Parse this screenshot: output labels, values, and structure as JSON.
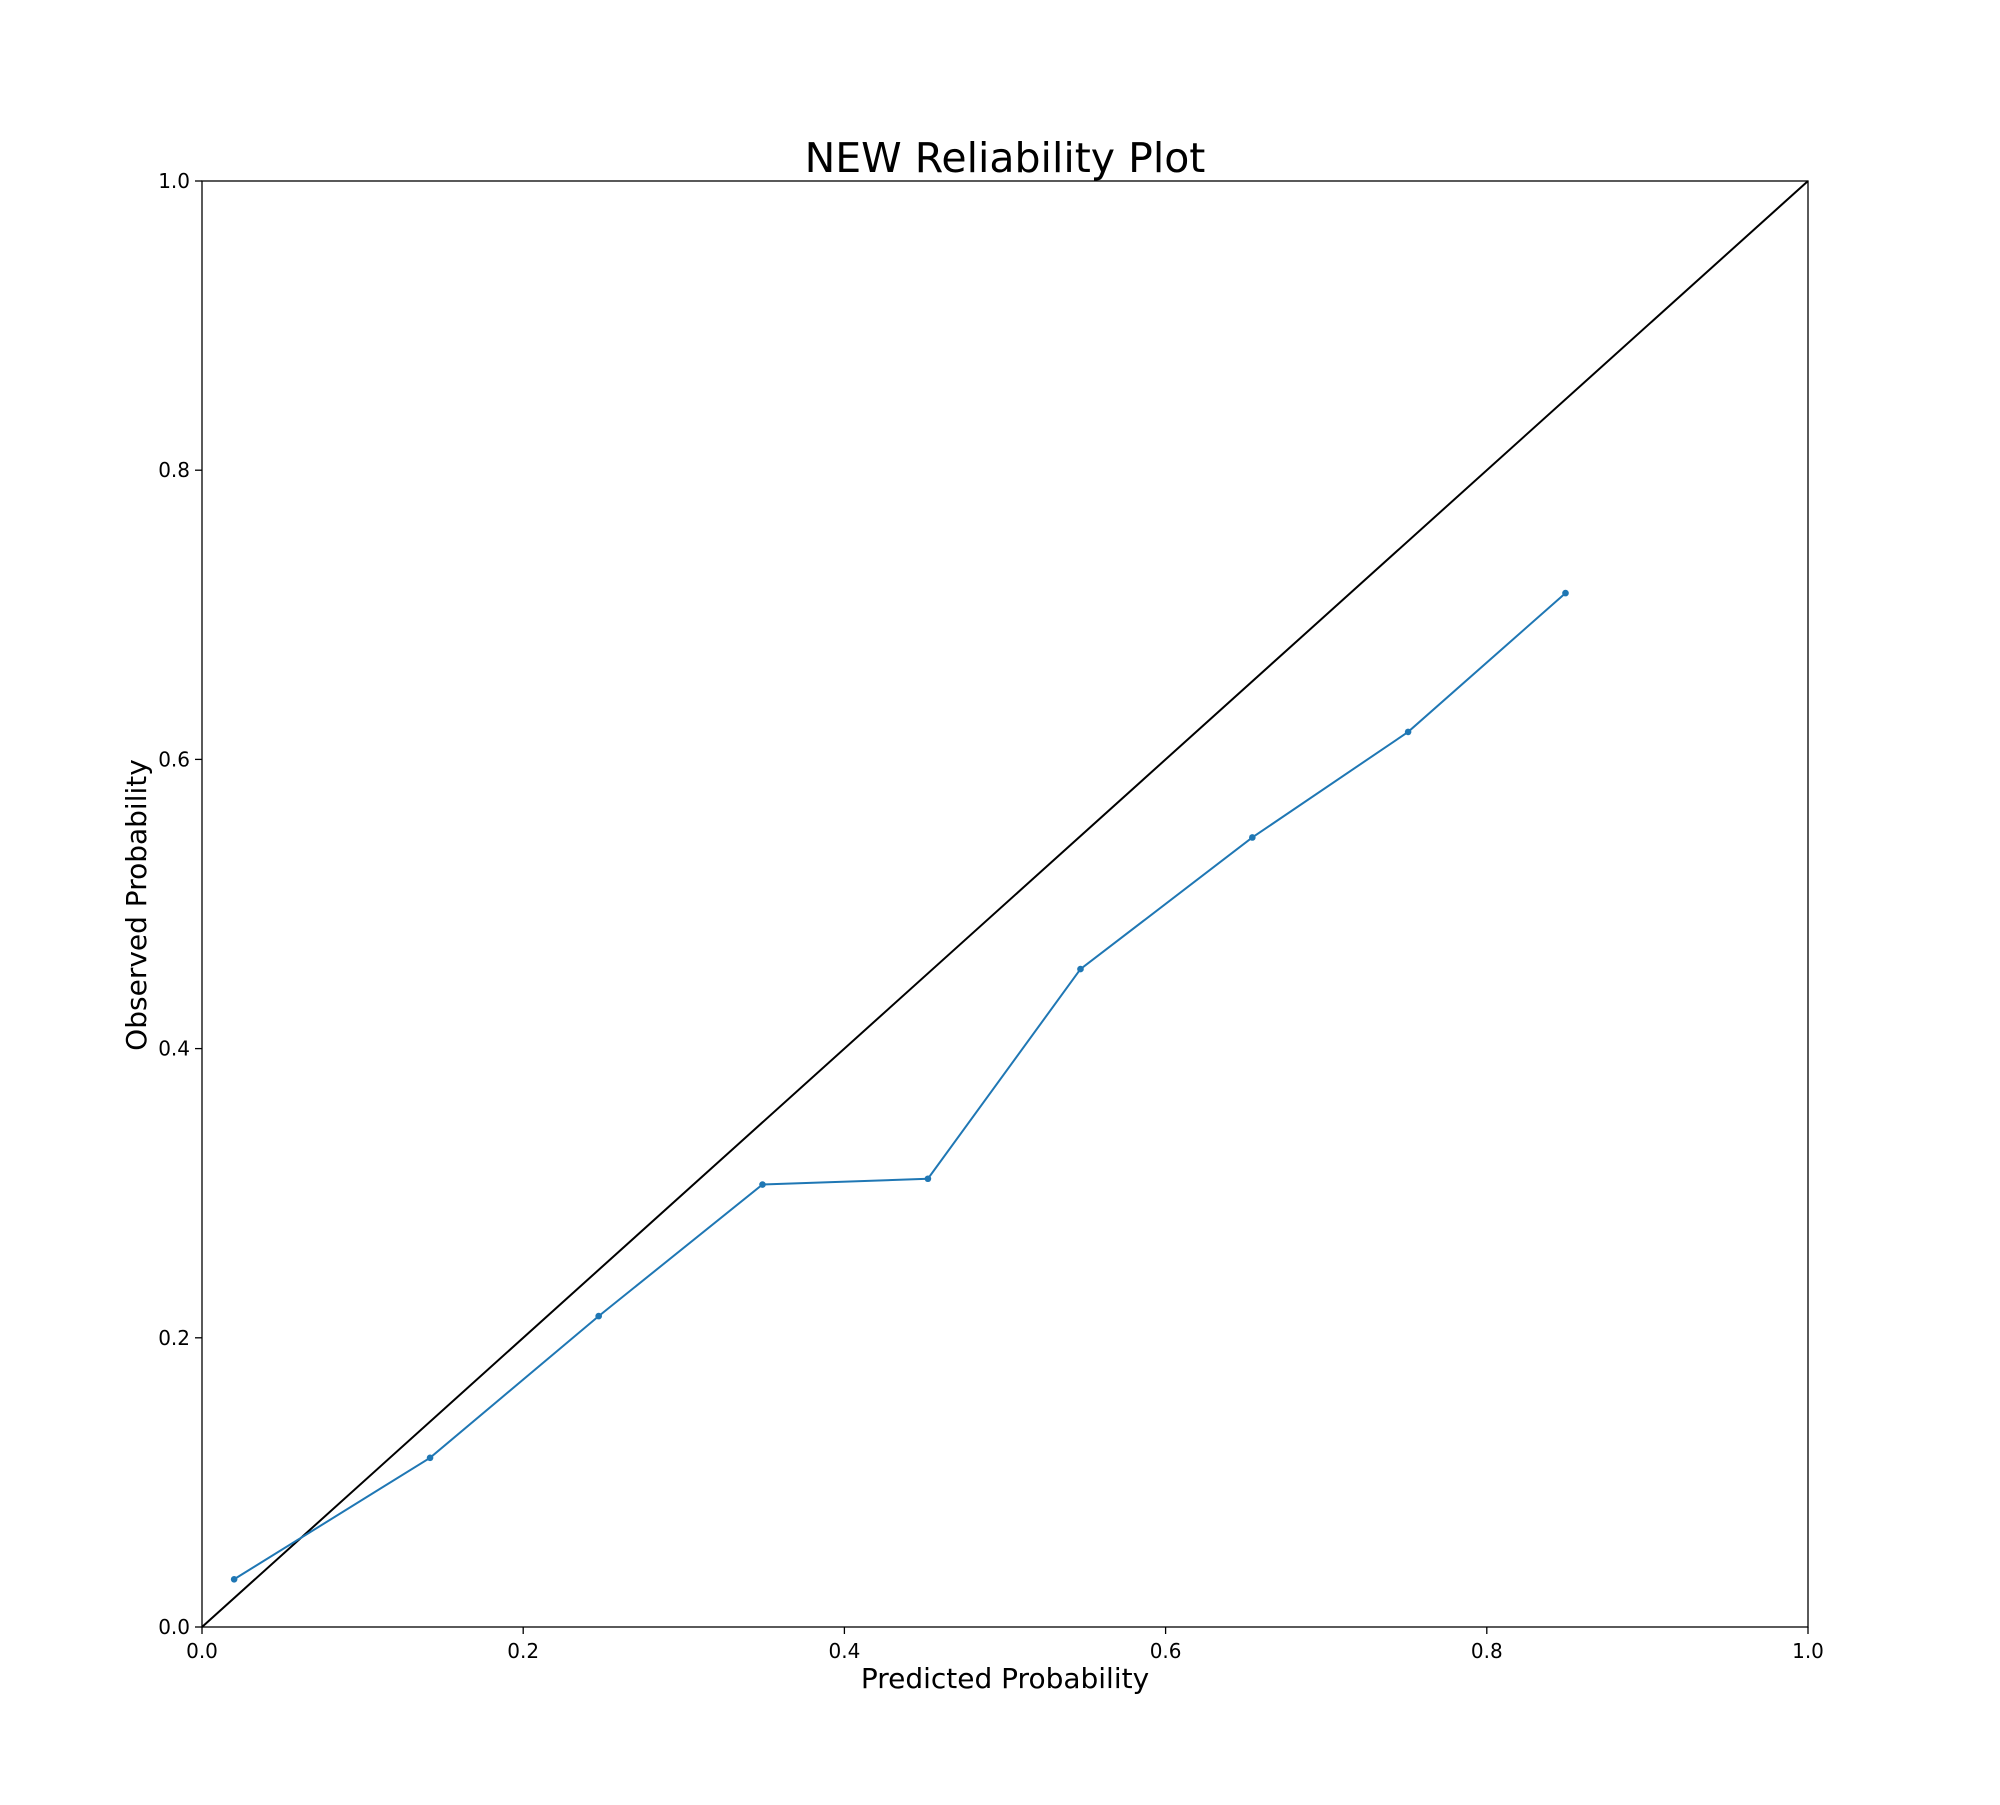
{
  "chart_data": {
    "type": "line",
    "title": "NEW Reliability Plot",
    "xlabel": "Predicted Probability",
    "ylabel": "Observed Probability",
    "xlim": [
      0.0,
      1.0
    ],
    "ylim": [
      0.0,
      1.0
    ],
    "xticks": [
      "0.0",
      "0.2",
      "0.4",
      "0.6",
      "0.8",
      "1.0"
    ],
    "yticks": [
      "0.0",
      "0.2",
      "0.4",
      "0.6",
      "0.8",
      "1.0"
    ],
    "grid": false,
    "legend": "none",
    "reference_line": {
      "x": [
        0.0,
        1.0
      ],
      "y": [
        0.0,
        1.0
      ],
      "color": "#000000"
    },
    "series": [
      {
        "color": "#1f77b4",
        "marker": "dot",
        "x": [
          0.02,
          0.142,
          0.247,
          0.349,
          0.452,
          0.547,
          0.654,
          0.751,
          0.849
        ],
        "y": [
          0.033,
          0.117,
          0.215,
          0.306,
          0.31,
          0.455,
          0.546,
          0.619,
          0.715
        ]
      }
    ]
  }
}
